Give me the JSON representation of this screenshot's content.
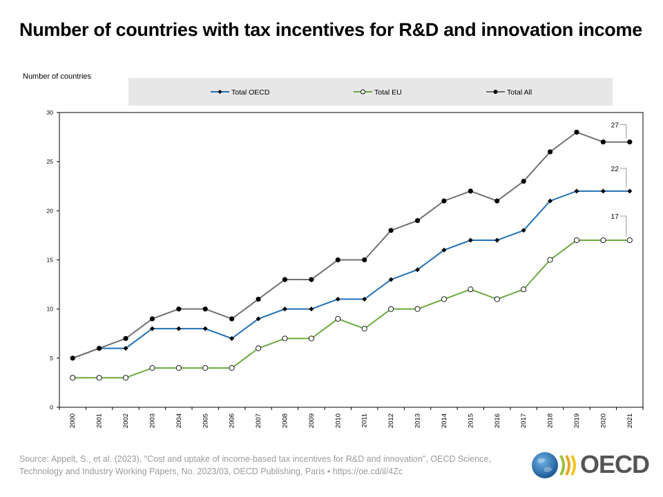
{
  "title": "Number of countries with tax incentives for R&D and innovation income",
  "source": "Source: Appelt, S., et al. (2023), \"Cost and uptake of income-based tax incentives for R&D and innovation\", OECD Science, Technology and Industry Working Papers, No. 2023/03, OECD Publishing, Paris • https://oe.cd/il/4Zc",
  "logo_text": "OECD",
  "colors": {
    "oecd": "#1f6fb6",
    "eu": "#6aaa3f",
    "all": "#707070",
    "legend_bg": "#e7e7e7"
  },
  "chart_data": {
    "type": "line",
    "ylabel": "Number of countries",
    "xlabel": "",
    "ylim": [
      0,
      30
    ],
    "yticks": [
      0,
      5,
      10,
      15,
      20,
      25,
      30
    ],
    "grid": false,
    "legend_placement": "top",
    "categories": [
      "2000",
      "2001",
      "2002",
      "2003",
      "2004",
      "2005",
      "2006",
      "2007",
      "2008",
      "2009",
      "2010",
      "2011",
      "2012",
      "2013",
      "2014",
      "2015",
      "2016",
      "2017",
      "2018",
      "2019",
      "2020",
      "2021"
    ],
    "series": [
      {
        "name": "Total OECD",
        "marker": "diamond",
        "values": [
          5,
          6,
          6,
          8,
          8,
          8,
          7,
          9,
          10,
          10,
          11,
          11,
          13,
          14,
          16,
          17,
          17,
          18,
          21,
          22,
          22,
          22
        ]
      },
      {
        "name": "Total EU",
        "marker": "open-circle",
        "values": [
          3,
          3,
          3,
          4,
          4,
          4,
          4,
          6,
          7,
          7,
          9,
          8,
          10,
          10,
          11,
          12,
          11,
          12,
          15,
          17,
          17,
          17
        ]
      },
      {
        "name": "Total All",
        "marker": "filled-circle",
        "values": [
          5,
          6,
          7,
          9,
          10,
          10,
          9,
          11,
          13,
          13,
          15,
          15,
          18,
          19,
          21,
          22,
          21,
          23,
          26,
          28,
          27,
          27
        ]
      }
    ],
    "end_labels": [
      "27",
      "22",
      "17"
    ]
  }
}
